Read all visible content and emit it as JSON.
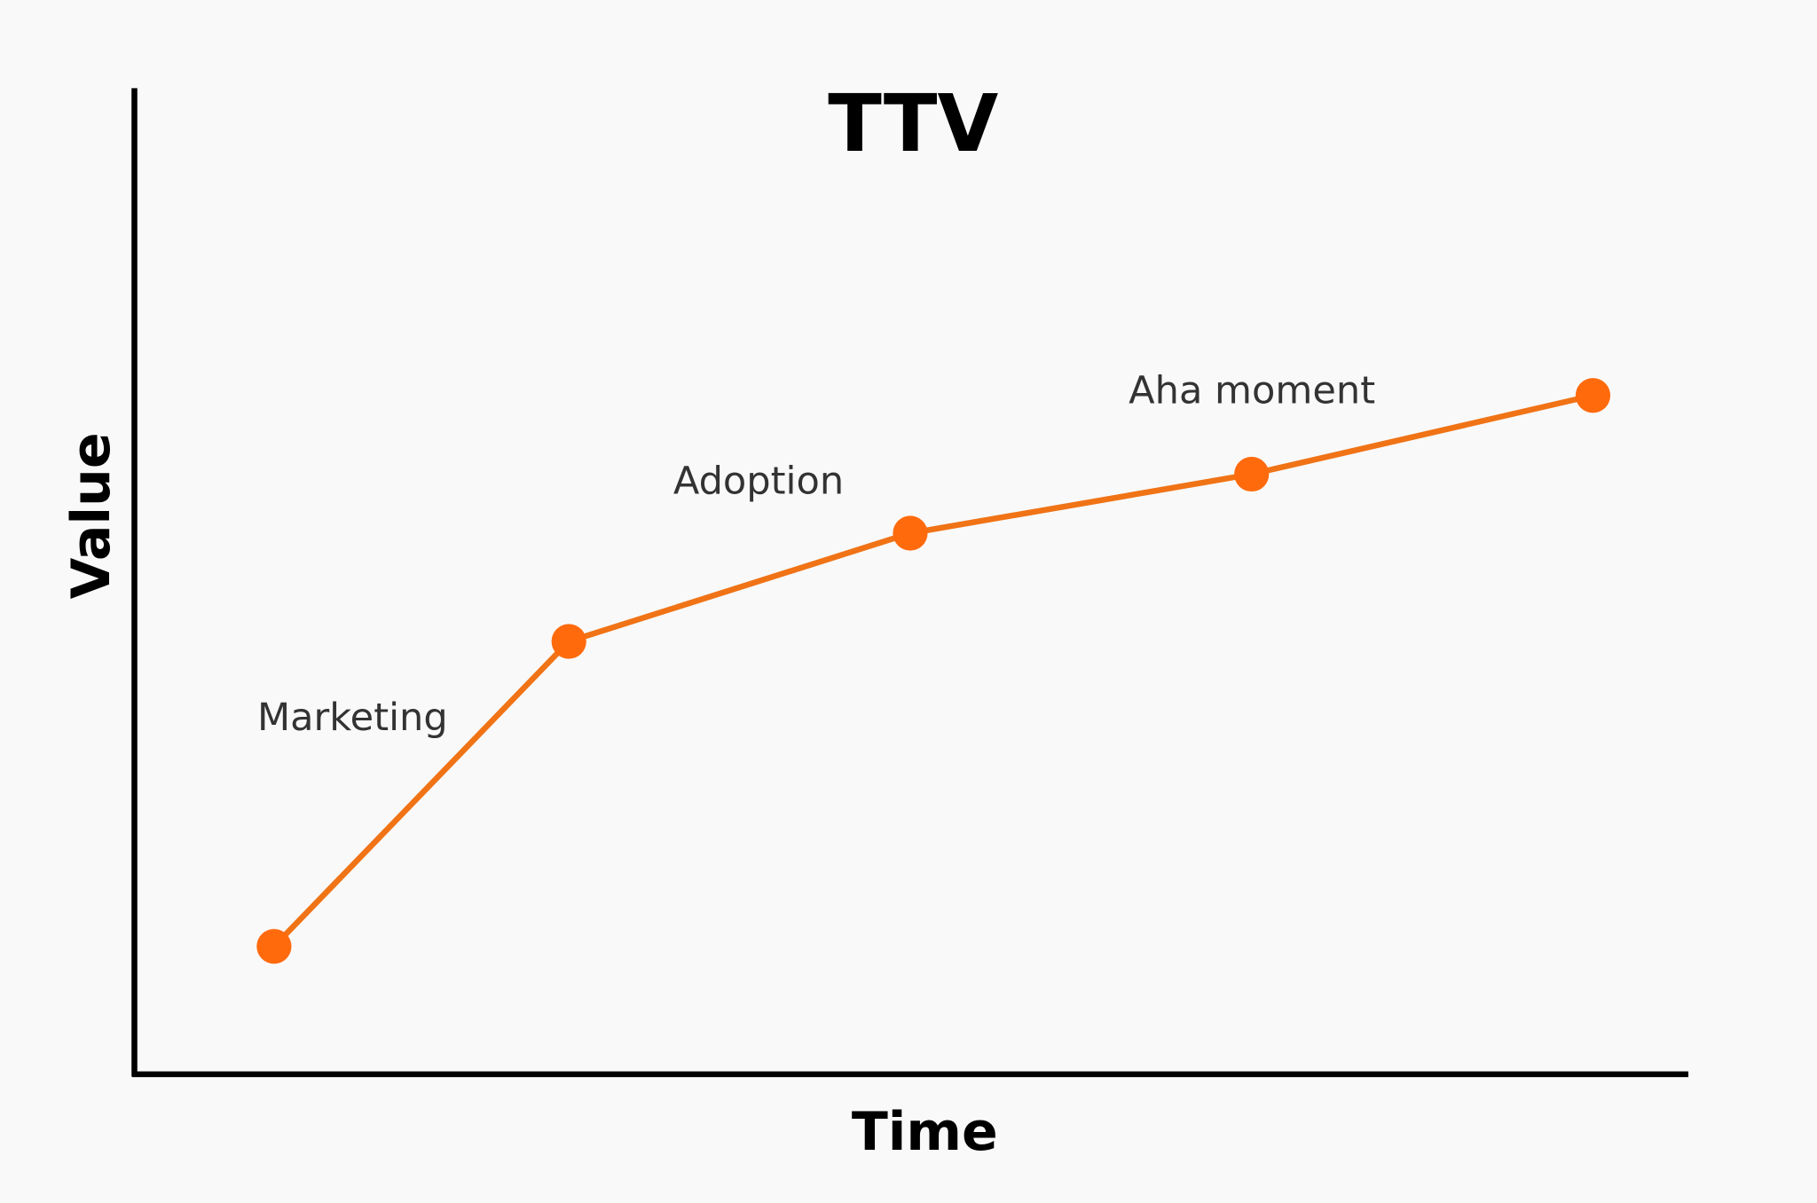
{
  "chart_data": {
    "type": "line",
    "title": "TTV",
    "x_label": "Time",
    "y_label": "Value",
    "x": [
      0.9,
      2.8,
      5.0,
      7.2,
      9.4
    ],
    "series": [
      {
        "color": "#f07316",
        "values": [
          1.3,
          4.4,
          5.5,
          6.1,
          6.9
        ]
      }
    ],
    "xlim": [
      0,
      10
    ],
    "ylim": [
      0,
      10
    ],
    "annotations": [
      "Marketing",
      "Adoption",
      "Aha moment"
    ]
  }
}
